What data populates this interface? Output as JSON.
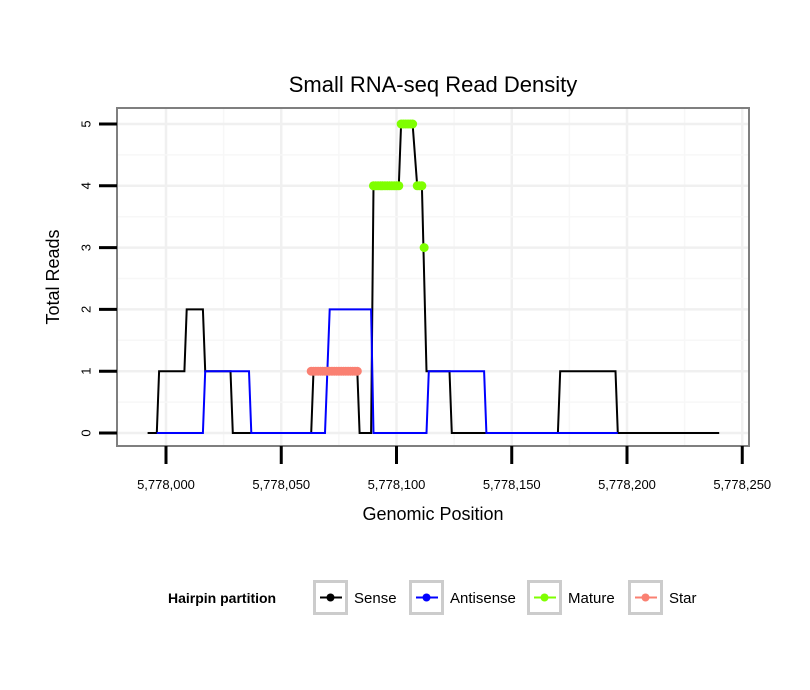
{
  "chart_data": {
    "type": "line",
    "title": "Small RNA-seq Read Density",
    "xlabel": "Genomic Position",
    "ylabel": "Total Reads",
    "xlim": [
      5777980,
      5778250
    ],
    "ylim": [
      -0.2,
      5.2
    ],
    "x_ticks": [
      {
        "value": 5778000,
        "label": "5,778,000"
      },
      {
        "value": 5778050,
        "label": "5,778,050"
      },
      {
        "value": 5778100,
        "label": "5,778,100"
      },
      {
        "value": 5778150,
        "label": "5,778,150"
      },
      {
        "value": 5778200,
        "label": "5,778,200"
      },
      {
        "value": 5778250,
        "label": "5,778,250"
      }
    ],
    "y_ticks": [
      {
        "value": 0,
        "label": "0"
      },
      {
        "value": 1,
        "label": "1"
      },
      {
        "value": 2,
        "label": "2"
      },
      {
        "value": 3,
        "label": "3"
      },
      {
        "value": 4,
        "label": "4"
      },
      {
        "value": 5,
        "label": "5"
      }
    ],
    "grid": true,
    "legend_position": "bottom",
    "series": [
      {
        "name": "Sense",
        "color": "#000000",
        "style": "line",
        "points": [
          [
            5777992,
            0
          ],
          [
            5777996,
            0
          ],
          [
            5777997,
            1
          ],
          [
            5778008,
            1
          ],
          [
            5778009,
            2
          ],
          [
            5778016,
            2
          ],
          [
            5778017,
            1
          ],
          [
            5778028,
            1
          ],
          [
            5778029,
            0
          ],
          [
            5778063,
            0
          ],
          [
            5778064,
            1
          ],
          [
            5778083,
            1
          ],
          [
            5778084,
            0
          ],
          [
            5778089,
            0
          ],
          [
            5778090,
            4
          ],
          [
            5778101,
            4
          ],
          [
            5778102,
            5
          ],
          [
            5778107,
            5
          ],
          [
            5778109,
            4
          ],
          [
            5778111,
            4
          ],
          [
            5778113,
            1
          ],
          [
            5778123,
            1
          ],
          [
            5778124,
            0
          ],
          [
            5778170,
            0
          ],
          [
            5778171,
            1
          ],
          [
            5778195,
            1
          ],
          [
            5778196,
            0
          ],
          [
            5778240,
            0
          ]
        ]
      },
      {
        "name": "Antisense",
        "color": "#0000ff",
        "style": "line",
        "points": [
          [
            5777996,
            0
          ],
          [
            5778016,
            0
          ],
          [
            5778017,
            1
          ],
          [
            5778036,
            1
          ],
          [
            5778037,
            0
          ],
          [
            5778069,
            0
          ],
          [
            5778071,
            2
          ],
          [
            5778089,
            2
          ],
          [
            5778090,
            0
          ],
          [
            5778113,
            0
          ],
          [
            5778114,
            1
          ],
          [
            5778138,
            1
          ],
          [
            5778139,
            0
          ],
          [
            5778196,
            0
          ]
        ]
      },
      {
        "name": "Mature",
        "color": "#7fff00",
        "style": "points",
        "points": [
          [
            5778090,
            4
          ],
          [
            5778091,
            4
          ],
          [
            5778092,
            4
          ],
          [
            5778093,
            4
          ],
          [
            5778094,
            4
          ],
          [
            5778095,
            4
          ],
          [
            5778096,
            4
          ],
          [
            5778097,
            4
          ],
          [
            5778098,
            4
          ],
          [
            5778099,
            4
          ],
          [
            5778100,
            4
          ],
          [
            5778101,
            4
          ],
          [
            5778102,
            5
          ],
          [
            5778103,
            5
          ],
          [
            5778104,
            5
          ],
          [
            5778105,
            5
          ],
          [
            5778106,
            5
          ],
          [
            5778107,
            5
          ],
          [
            5778109,
            4
          ],
          [
            5778110,
            4
          ],
          [
            5778111,
            4
          ],
          [
            5778112,
            3
          ]
        ]
      },
      {
        "name": "Star",
        "color": "#fa8072",
        "style": "points",
        "points": [
          [
            5778063,
            1
          ],
          [
            5778064,
            1
          ],
          [
            5778065,
            1
          ],
          [
            5778066,
            1
          ],
          [
            5778067,
            1
          ],
          [
            5778068,
            1
          ],
          [
            5778069,
            1
          ],
          [
            5778070,
            1
          ],
          [
            5778071,
            1
          ],
          [
            5778072,
            1
          ],
          [
            5778073,
            1
          ],
          [
            5778074,
            1
          ],
          [
            5778075,
            1
          ],
          [
            5778076,
            1
          ],
          [
            5778077,
            1
          ],
          [
            5778078,
            1
          ],
          [
            5778079,
            1
          ],
          [
            5778080,
            1
          ],
          [
            5778081,
            1
          ],
          [
            5778082,
            1
          ],
          [
            5778083,
            1
          ]
        ]
      }
    ],
    "legend": {
      "title": "Hairpin partition",
      "items": [
        {
          "label": "Sense",
          "color": "#000000"
        },
        {
          "label": "Antisense",
          "color": "#0000ff"
        },
        {
          "label": "Mature",
          "color": "#7fff00"
        },
        {
          "label": "Star",
          "color": "#fa8072"
        }
      ]
    }
  }
}
